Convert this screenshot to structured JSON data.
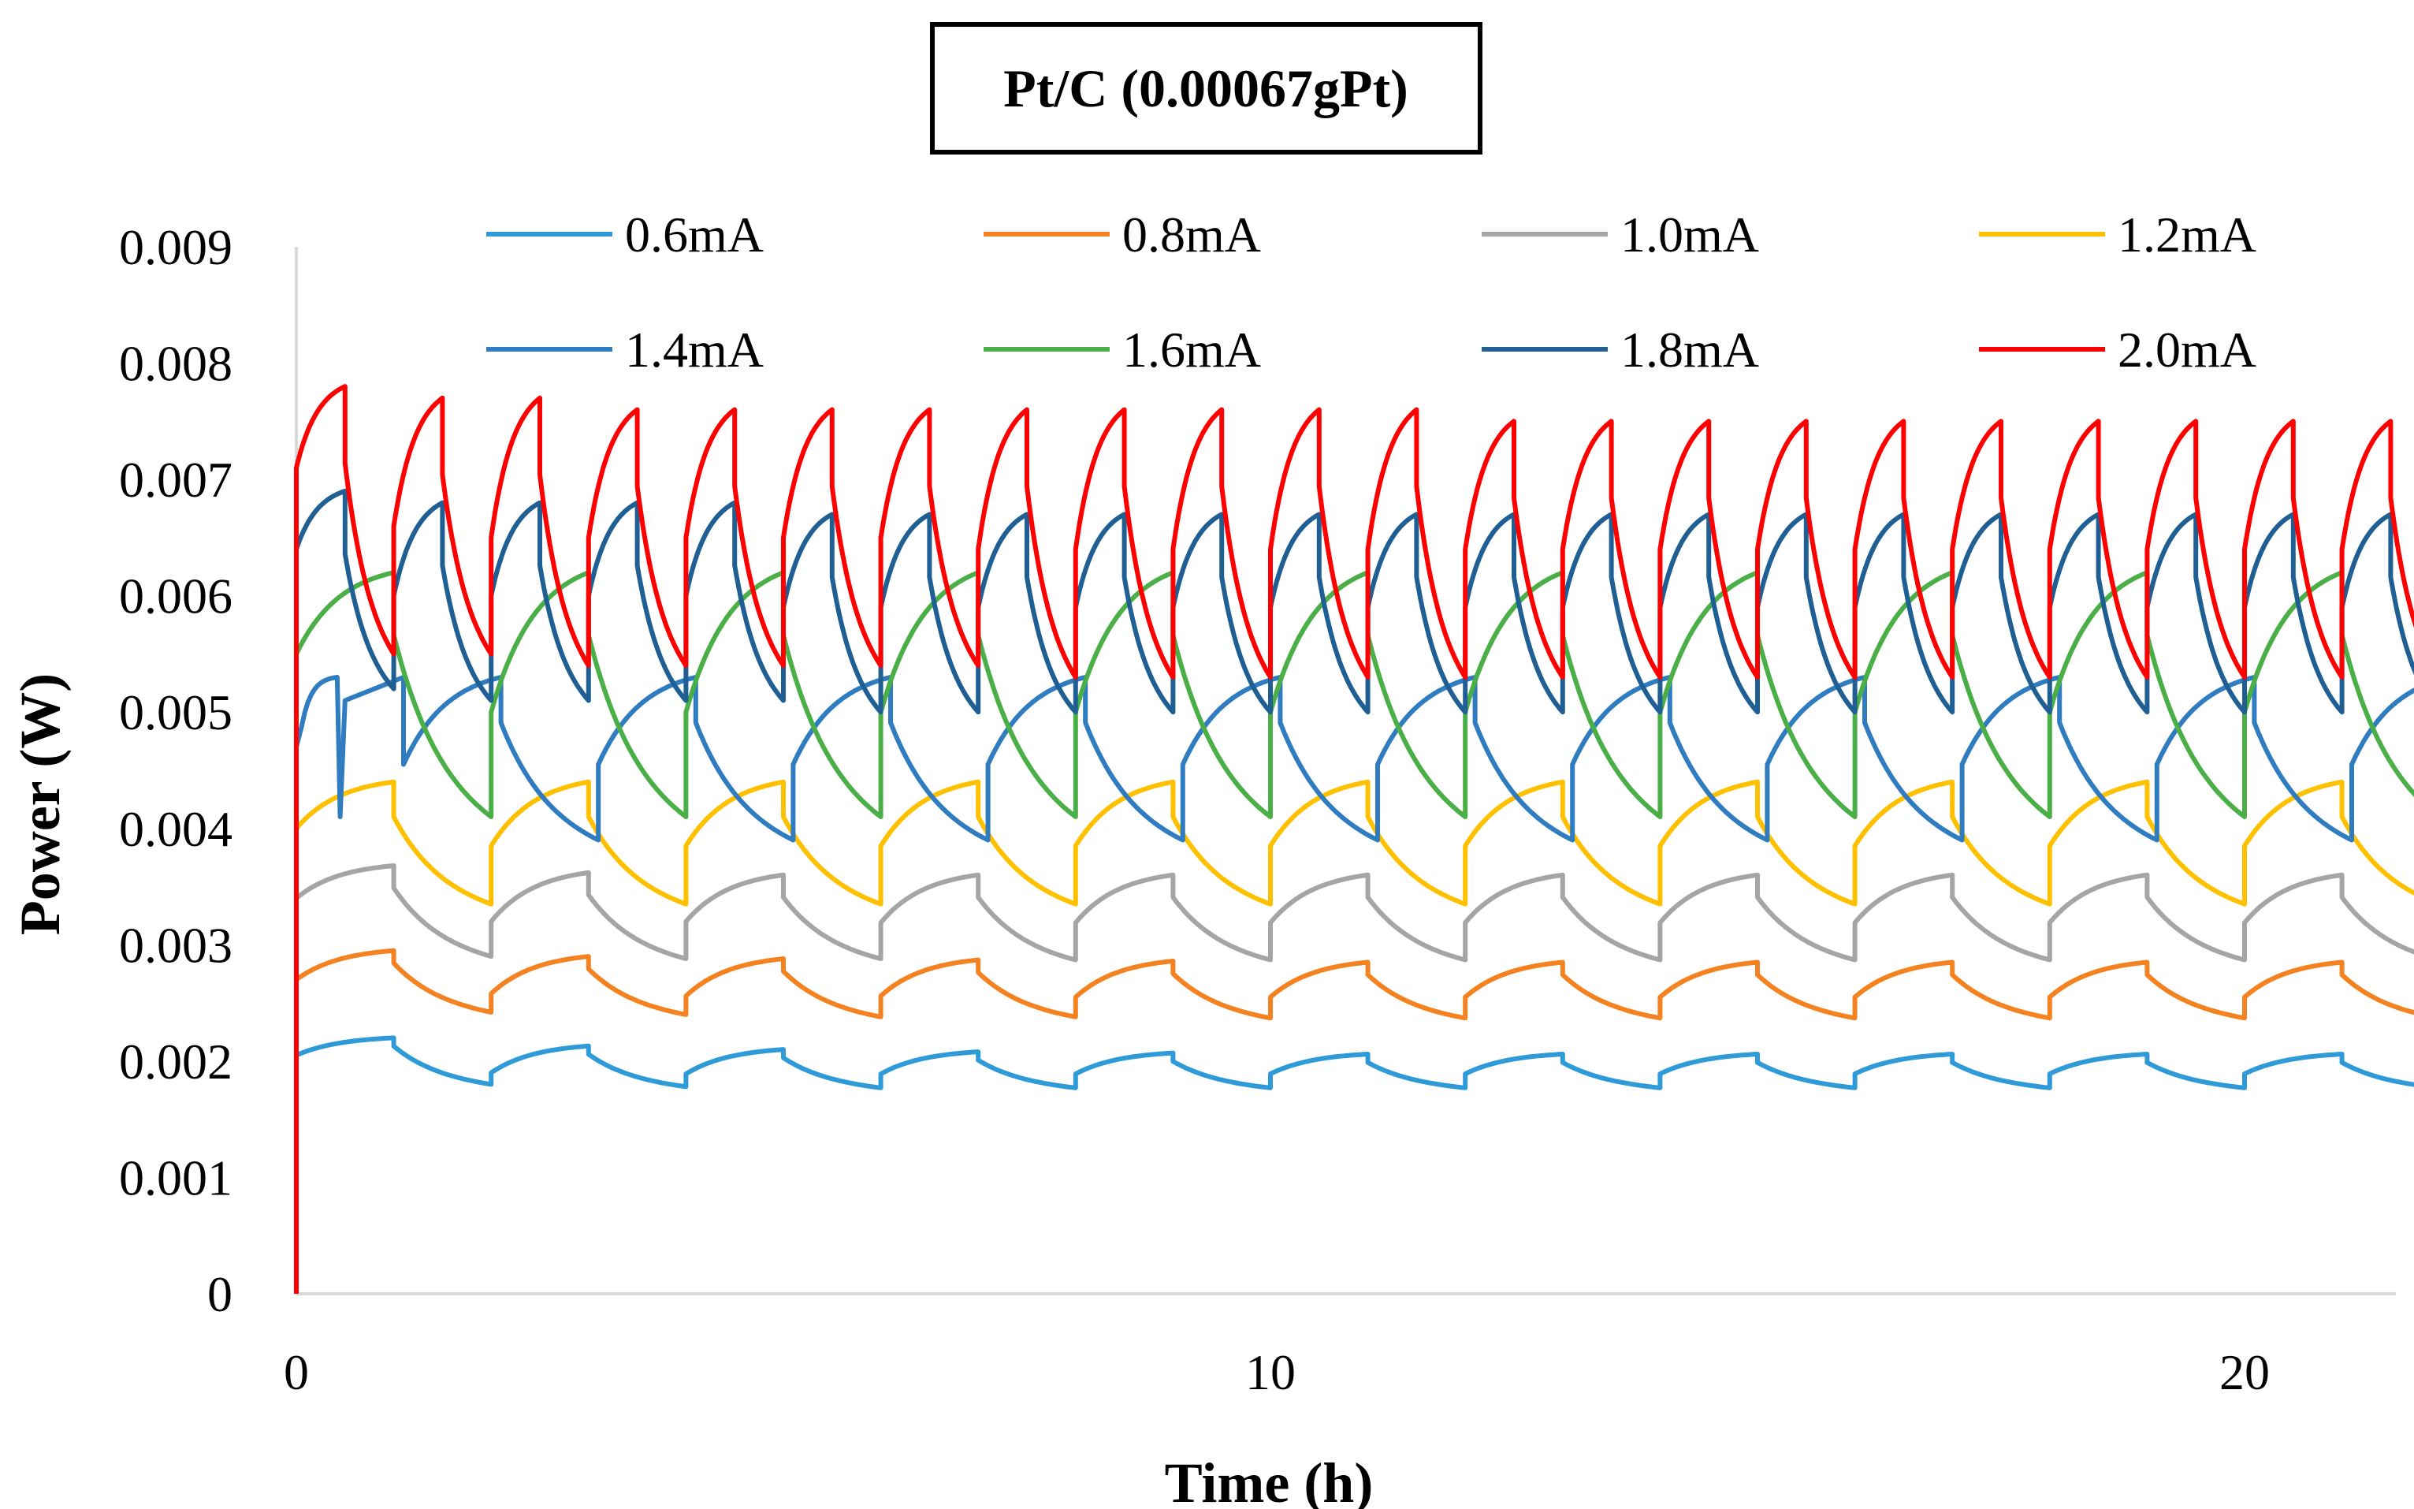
{
  "chart_data": {
    "type": "line",
    "title": "Pt/C (0.00067gPt)",
    "xlabel": "Time (h)",
    "ylabel": "Power (W)",
    "xlim": [
      0,
      22
    ],
    "ylim": [
      0,
      0.009
    ],
    "xticks": [
      0,
      10,
      20
    ],
    "xtick_labels": [
      "0",
      "10",
      "20"
    ],
    "yticks": [
      0,
      0.001,
      0.002,
      0.003,
      0.004,
      0.005,
      0.006,
      0.007,
      0.008,
      0.009
    ],
    "ytick_labels": [
      "0",
      "0.001",
      "0.002",
      "0.003",
      "0.004",
      "0.005",
      "0.006",
      "0.007",
      "0.008",
      "0.009"
    ],
    "legend_position": "top",
    "series": [
      {
        "name": "0.6mA",
        "color": "#2E9AD8",
        "period": 2.0,
        "start_phase": 0.0,
        "charge_frac": 0.5,
        "start_level": 0.00205,
        "peaks": [
          0.0022,
          0.00213,
          0.0021,
          0.00208,
          0.00207,
          0.00206,
          0.00206,
          0.00206,
          0.00206,
          0.00206,
          0.00206
        ],
        "troughs": [
          0.0018,
          0.00178,
          0.00177,
          0.00177,
          0.00177,
          0.00177,
          0.00177,
          0.00177,
          0.00177,
          0.00177,
          0.00177
        ],
        "jump": 0.00012,
        "shape": "exp"
      },
      {
        "name": "0.8mA",
        "color": "#F58220",
        "period": 2.0,
        "start_phase": 0.0,
        "charge_frac": 0.5,
        "start_level": 0.0027,
        "peaks": [
          0.00295,
          0.0029,
          0.00288,
          0.00287,
          0.00286,
          0.00285,
          0.00285,
          0.00285,
          0.00285,
          0.00285,
          0.00285
        ],
        "troughs": [
          0.00242,
          0.0024,
          0.00238,
          0.00238,
          0.00237,
          0.00237,
          0.00237,
          0.00237,
          0.00237,
          0.00237,
          0.00237
        ],
        "jump": 0.00018,
        "shape": "exp"
      },
      {
        "name": "1.0mA",
        "color": "#A5A5A5",
        "period": 2.0,
        "start_phase": 0.0,
        "charge_frac": 0.5,
        "start_level": 0.0034,
        "peaks": [
          0.00368,
          0.00362,
          0.0036,
          0.0036,
          0.0036,
          0.0036,
          0.0036,
          0.0036,
          0.0036,
          0.0036,
          0.0036
        ],
        "troughs": [
          0.0029,
          0.00288,
          0.00288,
          0.00287,
          0.00287,
          0.00287,
          0.00287,
          0.00287,
          0.00287,
          0.00287,
          0.00287
        ],
        "jump": 0.00032,
        "shape": "exp"
      },
      {
        "name": "1.2mA",
        "color": "#FFC000",
        "period": 2.0,
        "start_phase": 0.0,
        "charge_frac": 0.5,
        "start_level": 0.004,
        "peaks": [
          0.0044,
          0.0044,
          0.0044,
          0.0044,
          0.0044,
          0.0044,
          0.0044,
          0.0044,
          0.0044,
          0.0044,
          0.0044
        ],
        "troughs": [
          0.00335,
          0.00335,
          0.00335,
          0.00335,
          0.00335,
          0.00335,
          0.00335,
          0.00335,
          0.00335,
          0.00335,
          0.00335
        ],
        "jump": 0.0005,
        "shape": "exp"
      },
      {
        "name": "1.4mA",
        "color": "#2F7CC0",
        "period": 2.0,
        "start_phase": 1.4,
        "charge_frac": 0.5,
        "start_level": 0.0047,
        "peaks": [
          0.0053,
          0.0053,
          0.0053,
          0.0053,
          0.0053,
          0.0053,
          0.0053,
          0.0053,
          0.0053,
          0.0053,
          0.0053,
          0.0053
        ],
        "troughs": [
          0.0039,
          0.0039,
          0.0039,
          0.0039,
          0.0039,
          0.0039,
          0.0039,
          0.0039,
          0.0039,
          0.0039,
          0.0039,
          0.0039
        ],
        "jump": 0.00065,
        "shape": "exp"
      },
      {
        "name": "1.6mA",
        "color": "#4BAF47",
        "period": 2.0,
        "start_phase": 0.0,
        "charge_frac": 0.5,
        "start_level": 0.0055,
        "peaks": [
          0.0062,
          0.0062,
          0.0062,
          0.0062,
          0.0062,
          0.0062,
          0.0062,
          0.0062,
          0.0062,
          0.0062,
          0.0062,
          0.0062
        ],
        "troughs": [
          0.0041,
          0.0041,
          0.0041,
          0.0041,
          0.0041,
          0.0041,
          0.0041,
          0.0041,
          0.0041,
          0.0041,
          0.0041,
          0.0041
        ],
        "jump": 0.0009,
        "shape": "exp"
      },
      {
        "name": "1.8mA",
        "color": "#1F5F94",
        "period": 1.0,
        "start_phase": 0.0,
        "charge_frac": 0.5,
        "start_level": 0.0064,
        "peaks": [
          0.0069,
          0.0068,
          0.0068,
          0.0068,
          0.0068,
          0.0067,
          0.0067,
          0.0067,
          0.0067,
          0.0067,
          0.0067,
          0.0067,
          0.0067,
          0.0067,
          0.0067,
          0.0067,
          0.0067,
          0.0067,
          0.0067,
          0.0067,
          0.0067,
          0.0067,
          0.0067
        ],
        "troughs": [
          0.0052,
          0.0051,
          0.0051,
          0.0051,
          0.0051,
          0.005,
          0.005,
          0.005,
          0.005,
          0.005,
          0.005,
          0.005,
          0.005,
          0.005,
          0.005,
          0.005,
          0.005,
          0.005,
          0.005,
          0.005,
          0.005,
          0.005,
          0.005
        ],
        "jump": 0.0009,
        "shape": "exp"
      },
      {
        "name": "2.0mA",
        "color": "#FF0000",
        "period": 1.0,
        "start_phase": 0.0,
        "charge_frac": 0.5,
        "start_level": 0.0071,
        "peaks": [
          0.0078,
          0.0077,
          0.0077,
          0.0076,
          0.0076,
          0.0076,
          0.0076,
          0.0076,
          0.0076,
          0.0076,
          0.0076,
          0.0076,
          0.0075,
          0.0075,
          0.0075,
          0.0075,
          0.0075,
          0.0075,
          0.0075,
          0.0075,
          0.0075,
          0.0075,
          0.0075
        ],
        "troughs": [
          0.0055,
          0.0055,
          0.0054,
          0.0054,
          0.0054,
          0.0054,
          0.0054,
          0.0053,
          0.0053,
          0.0053,
          0.0053,
          0.0053,
          0.0053,
          0.0053,
          0.0053,
          0.0053,
          0.0053,
          0.0053,
          0.0053,
          0.0053,
          0.0053,
          0.0053,
          0.0054
        ],
        "jump": 0.0011,
        "shape": "exp"
      }
    ]
  }
}
